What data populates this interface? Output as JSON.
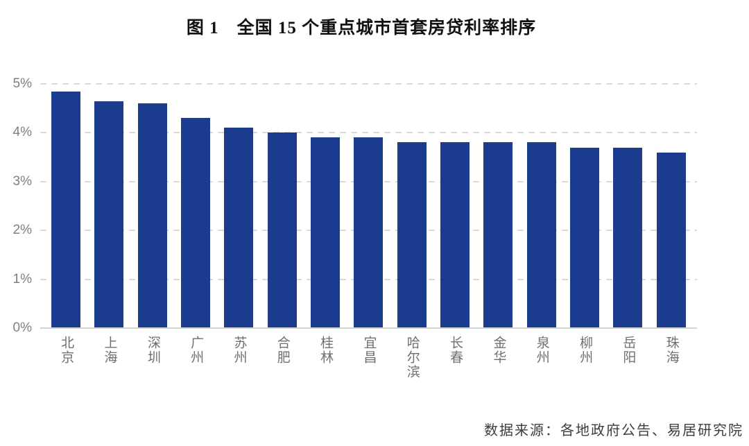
{
  "figure": {
    "title": "图 1　全国 15 个重点城市首套房贷利率排序",
    "source": "数据来源：各地政府公告、易居研究院"
  },
  "colors": {
    "bar": "#1B3C8E",
    "gridline": "#d9d9d9",
    "baseline": "#d2d2d2",
    "tick_label": "#7f7f7f",
    "category_label": "#6f6f6f",
    "title_text": "#111111",
    "source_text": "#3c3c3c"
  },
  "chart_data": {
    "type": "bar",
    "title": "图 1　全国 15 个重点城市首套房贷利率排序",
    "categories": [
      "北京",
      "上海",
      "深圳",
      "广州",
      "苏州",
      "合肥",
      "桂林",
      "宜昌",
      "哈尔滨",
      "长春",
      "金华",
      "泉州",
      "柳州",
      "岳阳",
      "珠海"
    ],
    "values": [
      4.85,
      4.65,
      4.6,
      4.3,
      4.1,
      4.0,
      3.9,
      3.9,
      3.8,
      3.8,
      3.8,
      3.8,
      3.7,
      3.7,
      3.6
    ],
    "unit": "%",
    "xlabel": "",
    "ylabel": "",
    "ylim": [
      0,
      5
    ],
    "yticks": [
      0,
      1,
      2,
      3,
      4,
      5
    ],
    "ytick_labels": [
      "0%",
      "1%",
      "2%",
      "3%",
      "4%",
      "5%"
    ],
    "grid": "horizontal-dashed",
    "legend_position": "none",
    "bar_color": "#1B3C8E",
    "source": "数据来源：各地政府公告、易居研究院"
  }
}
